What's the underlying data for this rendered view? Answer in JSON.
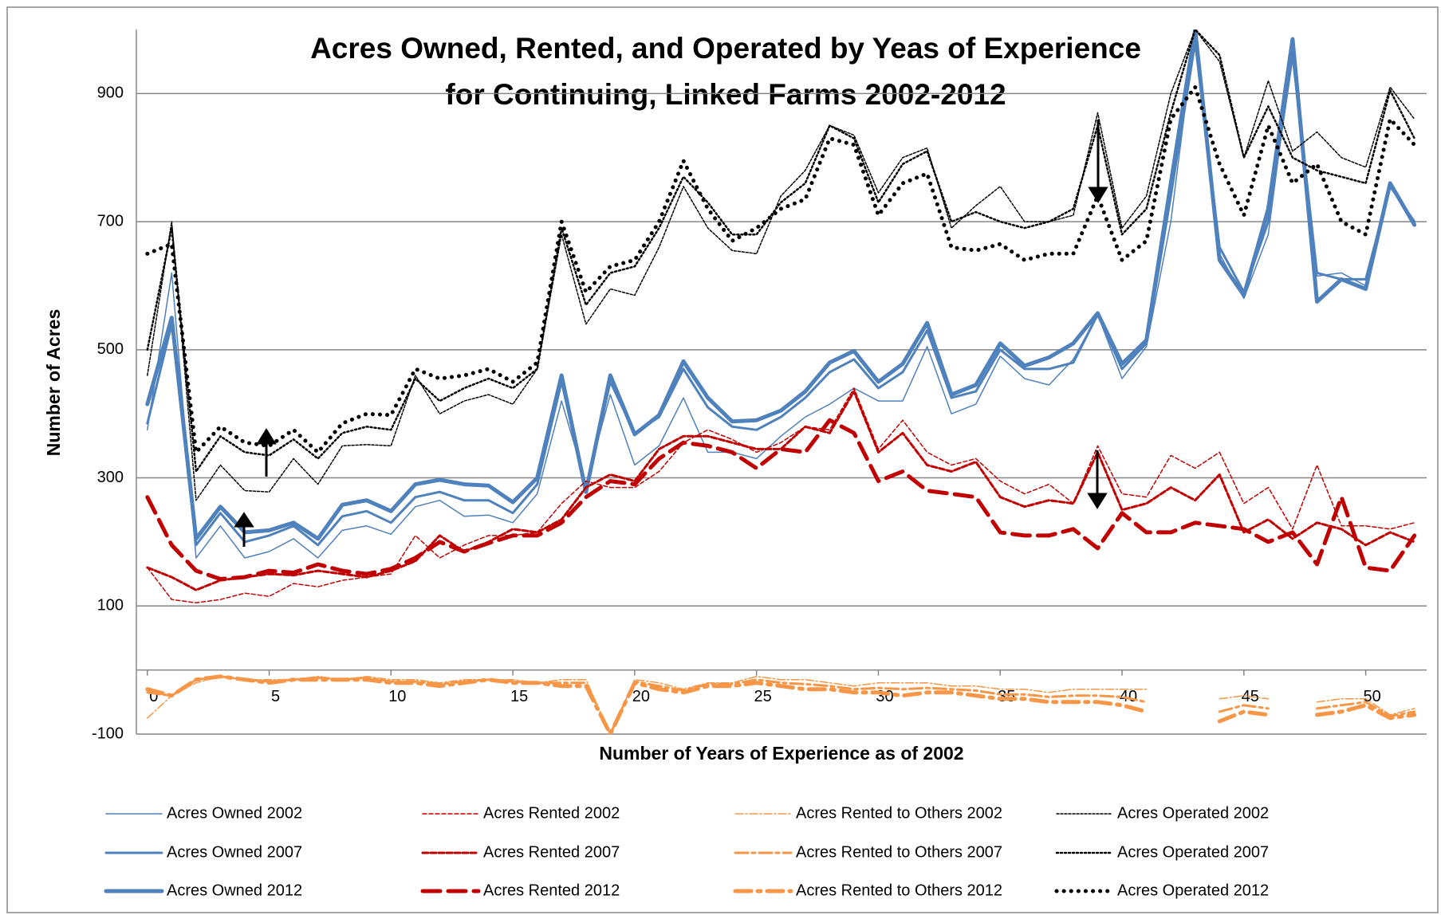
{
  "chart_data": {
    "type": "line",
    "title": [
      "Acres Owned, Rented, and Operated by Yeas of Experience",
      "for Continuing, Linked Farms 2002-2012"
    ],
    "x_label": "Number of Years of Experience as of 2002",
    "y_label": "Number of Acres",
    "x": [
      0,
      1,
      2,
      3,
      4,
      5,
      6,
      7,
      8,
      9,
      10,
      11,
      12,
      13,
      14,
      15,
      16,
      17,
      18,
      19,
      20,
      21,
      22,
      23,
      24,
      25,
      26,
      27,
      28,
      29,
      30,
      31,
      32,
      33,
      34,
      35,
      36,
      37,
      38,
      39,
      40,
      41,
      42,
      43,
      44,
      45,
      46,
      47,
      48,
      49,
      50,
      51,
      52
    ],
    "xlim": [
      -0.45,
      52.5
    ],
    "xticks": [
      0,
      5,
      10,
      15,
      20,
      25,
      30,
      35,
      40,
      45,
      50
    ],
    "ylim": [
      -100,
      1000
    ],
    "yticks": [
      -100,
      100,
      300,
      500,
      700,
      900
    ],
    "grid": true,
    "series": [
      {
        "name": "Acres Owned 2002",
        "color": "#4f81bd",
        "width": 1.5,
        "dash": "none",
        "values": [
          375,
          620,
          175,
          225,
          175,
          185,
          205,
          175,
          218,
          225,
          212,
          255,
          265,
          240,
          242,
          230,
          275,
          420,
          290,
          430,
          320,
          350,
          425,
          340,
          340,
          330,
          365,
          395,
          415,
          440,
          420,
          420,
          505,
          400,
          415,
          490,
          455,
          445,
          485,
          555,
          455,
          505,
          700,
          1000,
          650,
          580,
          680,
          970,
          615,
          620,
          600,
          760,
          695
        ]
      },
      {
        "name": "Acres Owned 2007",
        "color": "#4f81bd",
        "width": 3,
        "dash": "none",
        "values": [
          385,
          540,
          195,
          245,
          200,
          210,
          225,
          195,
          240,
          248,
          230,
          270,
          278,
          265,
          265,
          245,
          290,
          450,
          280,
          450,
          370,
          395,
          470,
          410,
          380,
          375,
          395,
          425,
          465,
          485,
          440,
          465,
          530,
          425,
          435,
          500,
          470,
          470,
          480,
          555,
          470,
          510,
          740,
          980,
          660,
          590,
          700,
          960,
          620,
          610,
          610,
          755,
          700
        ]
      },
      {
        "name": "Acres Owned 2012",
        "color": "#4f81bd",
        "width": 5,
        "dash": "none",
        "values": [
          415,
          550,
          205,
          255,
          215,
          218,
          230,
          205,
          258,
          265,
          248,
          290,
          297,
          290,
          288,
          262,
          300,
          460,
          278,
          460,
          368,
          398,
          482,
          425,
          388,
          390,
          405,
          435,
          480,
          498,
          450,
          478,
          542,
          430,
          445,
          510,
          475,
          488,
          510,
          557,
          478,
          515,
          760,
          1000,
          640,
          585,
          720,
          985,
          575,
          610,
          595,
          760,
          695
        ]
      },
      {
        "name": "Acres Rented 2002",
        "color": "#c00000",
        "width": 1.5,
        "dash": "5 3",
        "values": [
          160,
          110,
          105,
          110,
          120,
          115,
          135,
          130,
          140,
          145,
          150,
          210,
          175,
          195,
          210,
          210,
          215,
          260,
          295,
          285,
          285,
          310,
          355,
          375,
          360,
          340,
          355,
          380,
          375,
          440,
          345,
          390,
          340,
          320,
          330,
          295,
          275,
          290,
          260,
          350,
          275,
          270,
          335,
          315,
          340,
          260,
          285,
          220,
          320,
          225,
          225,
          220,
          230
        ]
      },
      {
        "name": "Acres Rented 2007",
        "color": "#c00000",
        "width": 3,
        "dash": "7 3",
        "values": [
          160,
          145,
          125,
          140,
          145,
          150,
          148,
          155,
          150,
          145,
          155,
          170,
          210,
          185,
          200,
          220,
          215,
          235,
          285,
          305,
          295,
          345,
          365,
          365,
          355,
          345,
          345,
          380,
          370,
          435,
          340,
          370,
          320,
          310,
          325,
          270,
          255,
          265,
          260,
          340,
          250,
          260,
          285,
          265,
          305,
          215,
          235,
          205,
          230,
          220,
          195,
          215,
          200
        ]
      },
      {
        "name": "Acres Rented 2012",
        "color": "#c00000",
        "width": 5,
        "dash": "22 10",
        "values": [
          270,
          195,
          155,
          142,
          145,
          155,
          152,
          165,
          155,
          150,
          158,
          175,
          200,
          185,
          198,
          210,
          210,
          230,
          270,
          295,
          290,
          330,
          355,
          350,
          340,
          315,
          345,
          340,
          390,
          370,
          295,
          310,
          280,
          275,
          270,
          215,
          210,
          210,
          220,
          190,
          245,
          215,
          215,
          230,
          225,
          220,
          200,
          215,
          165,
          270,
          160,
          155,
          210
        ]
      },
      {
        "name": "Acres Rented to Others 2002",
        "color": "#f79646",
        "width": 1.5,
        "dash": "10 3 2 3",
        "values": [
          -75,
          -40,
          -20,
          -10,
          -15,
          -15,
          -15,
          -10,
          -15,
          -10,
          -15,
          -15,
          -20,
          -15,
          -15,
          -15,
          -20,
          -15,
          -15,
          -100,
          -15,
          -20,
          -30,
          -20,
          -20,
          -10,
          -15,
          -15,
          -20,
          -25,
          -20,
          -20,
          -20,
          -25,
          -25,
          -30,
          -30,
          -35,
          -30,
          -30,
          -30,
          -30,
          null,
          null,
          -45,
          -40,
          -45,
          null,
          -50,
          -45,
          -45,
          -70,
          -60
        ]
      },
      {
        "name": "Acres Rented to Others 2007",
        "color": "#f79646",
        "width": 3,
        "dash": "16 5 4 5",
        "values": [
          -35,
          -40,
          -15,
          -10,
          -15,
          -18,
          -15,
          -12,
          -15,
          -12,
          -18,
          -18,
          -22,
          -18,
          -15,
          -18,
          -20,
          -20,
          -20,
          -100,
          -18,
          -25,
          -32,
          -22,
          -22,
          -15,
          -20,
          -22,
          -25,
          -30,
          -28,
          -30,
          -28,
          -30,
          -32,
          -38,
          -38,
          -42,
          -40,
          -40,
          -42,
          -50,
          null,
          null,
          -65,
          -55,
          -60,
          null,
          -60,
          -55,
          -50,
          -72,
          -65
        ]
      },
      {
        "name": "Acres Rented to Others 2012",
        "color": "#f79646",
        "width": 5,
        "dash": "20 8 4 8",
        "values": [
          -30,
          -40,
          -15,
          -10,
          -15,
          -20,
          -15,
          -15,
          -15,
          -15,
          -20,
          -20,
          -25,
          -20,
          -15,
          -20,
          -20,
          -25,
          -25,
          -100,
          -20,
          -30,
          -35,
          -25,
          -25,
          -20,
          -25,
          -30,
          -30,
          -35,
          -35,
          -40,
          -35,
          -35,
          -40,
          -45,
          -45,
          -50,
          -50,
          -50,
          -55,
          -65,
          null,
          null,
          -80,
          -65,
          -70,
          null,
          -70,
          -65,
          -55,
          -75,
          -70
        ]
      },
      {
        "name": "Acres Operated 2002",
        "color": "#000000",
        "width": 1.5,
        "dash": "3 2",
        "values": [
          460,
          700,
          265,
          320,
          280,
          278,
          330,
          290,
          350,
          352,
          350,
          460,
          400,
          420,
          430,
          415,
          470,
          680,
          540,
          595,
          585,
          660,
          755,
          690,
          655,
          650,
          740,
          780,
          850,
          835,
          745,
          800,
          815,
          690,
          725,
          755,
          700,
          700,
          710,
          870,
          690,
          740,
          900,
          1000,
          950,
          800,
          920,
          810,
          840,
          800,
          785,
          910,
          860
        ]
      },
      {
        "name": "Acres Operated 2007",
        "color": "#000000",
        "width": 2.5,
        "dash": "2 3",
        "values": [
          500,
          690,
          310,
          365,
          340,
          335,
          360,
          330,
          370,
          380,
          375,
          455,
          420,
          440,
          455,
          440,
          470,
          690,
          570,
          620,
          630,
          690,
          770,
          730,
          680,
          680,
          730,
          760,
          850,
          830,
          730,
          790,
          810,
          700,
          715,
          700,
          690,
          700,
          720,
          850,
          680,
          720,
          870,
          1000,
          960,
          800,
          880,
          800,
          780,
          770,
          760,
          905,
          830
        ]
      },
      {
        "name": "Acres Operated 2012",
        "color": "#000000",
        "width": 5,
        "dash": "0.1 9",
        "values": [
          650,
          665,
          340,
          380,
          355,
          350,
          375,
          340,
          385,
          400,
          398,
          470,
          455,
          460,
          470,
          450,
          480,
          700,
          590,
          630,
          640,
          700,
          795,
          720,
          670,
          690,
          720,
          735,
          830,
          820,
          710,
          760,
          775,
          660,
          655,
          665,
          640,
          650,
          650,
          740,
          640,
          670,
          860,
          910,
          790,
          710,
          850,
          760,
          790,
          700,
          680,
          860,
          820
        ]
      }
    ]
  }
}
